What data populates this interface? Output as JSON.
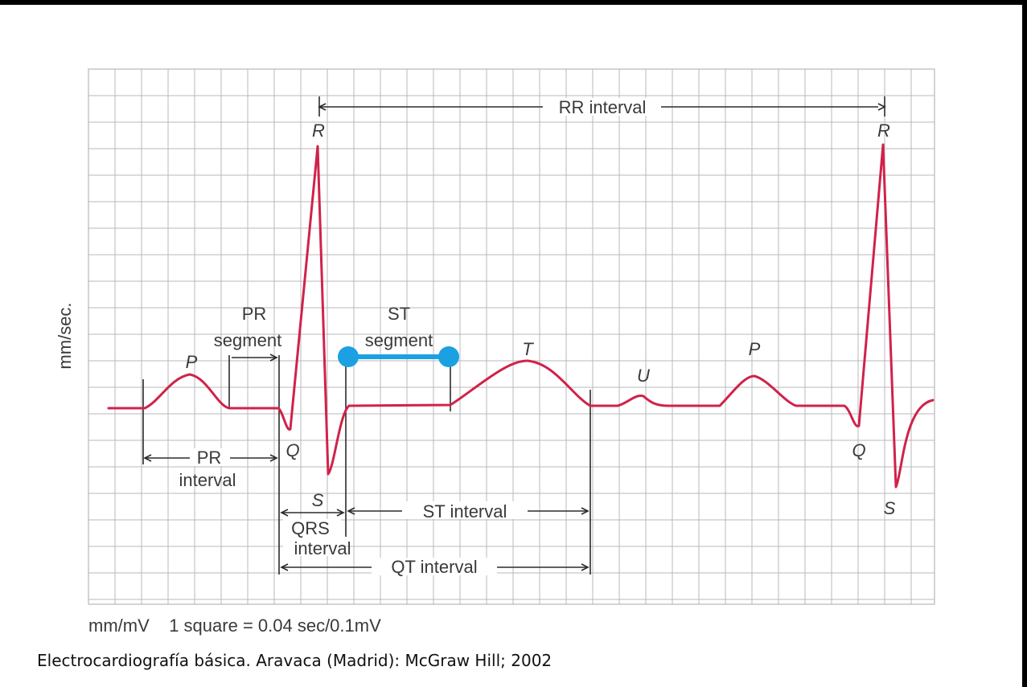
{
  "diagram": {
    "y_axis_label": "mm/sec.",
    "footer_units": "mm/mV    1 square = 0.04 sec/0.1mV",
    "citation": "Electrocardiografía básica. Aravaca (Madrid): McGraw Hill; 2002",
    "waves": {
      "p1": "P",
      "q1": "Q",
      "r1": "R",
      "s1": "S",
      "t": "T",
      "u": "U",
      "p2": "P",
      "q2": "Q",
      "r2": "R",
      "s2": "S"
    },
    "intervals": {
      "rr": "RR interval",
      "pr_segment_line1": "PR",
      "pr_segment_line2": "segment",
      "st_segment_line1": "ST",
      "st_segment_line2": "segment",
      "pr_interval_line1": "PR",
      "pr_interval_line2": "interval",
      "qrs_line1": "QRS",
      "qrs_line2": "interval",
      "st_interval": "ST interval",
      "qt_interval": "QT interval"
    },
    "colors": {
      "trace": "#d0224a",
      "grid": "#b8b8b8",
      "highlight": "#1ba1e2",
      "marker": "#2b2b2b"
    }
  }
}
